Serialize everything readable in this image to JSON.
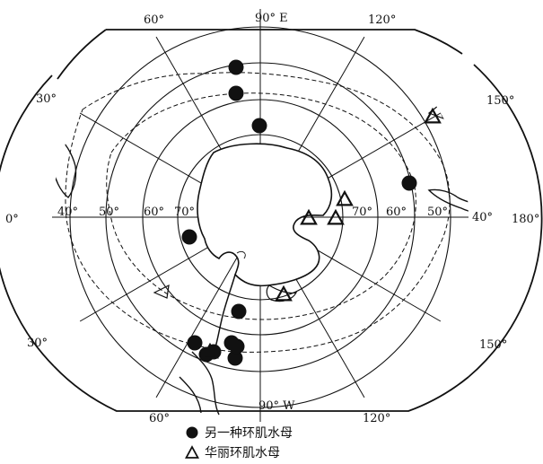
{
  "map": {
    "meridian_labels": {
      "lon_60e": "60°",
      "lon_90e": "90° E",
      "lon_120e": "120°",
      "lon_30e": "30°",
      "lon_150e": "150°",
      "lon_0": "0°",
      "lon_180": "180°",
      "lon_30w": "30°",
      "lon_150w": "150°",
      "lon_60w": "60°",
      "lon_90w": "90° W",
      "lon_120w": "120°"
    },
    "latitude_labels_left": [
      "40°",
      "50°",
      "60°",
      "70°"
    ],
    "latitude_labels_right": [
      "70°",
      "60°",
      "50°",
      "40°"
    ]
  },
  "observations": {
    "another_species_dots": 12,
    "beautiful_species_triangles": 6
  },
  "legend": {
    "dot_label": "另一种环肌水母",
    "triangle_label": "华丽环肌水母"
  },
  "colors": {
    "ink": "#111111",
    "background": "#ffffff"
  }
}
